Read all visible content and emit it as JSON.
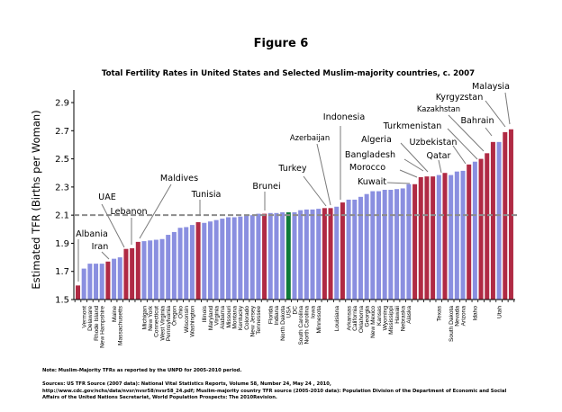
{
  "figure_label": "Figure 6",
  "notes": {
    "note": "Note: Muslim-Majority  TFRs as reported by the UNPD for 2005-2010 period.",
    "sources_1": "Sources: US TFR Source (2007 data): National Vital Statistics Reports, Volume 58, Number 24, May 24 , 2010,",
    "sources_2": "http://www.cdc.gov/nchs/data/nvsr/nvsr58/nvsr58_24.pdf; Muslim-majority country TFR source (2005-2010 data): Population Division of the Department of Economic and Social",
    "sources_3": "Affairs of the United Nations Secretariat, World Population Prospects: The 2010Revision."
  },
  "chart_data": {
    "type": "bar",
    "title": "Total Fertility Rates in United States and Selected Muslim-majority countries, c. 2007",
    "xlabel": "",
    "ylabel": "Estimated TFR (Births per Woman)",
    "ylim": [
      1.5,
      3.0
    ],
    "yticks": [
      "1.5",
      "1.7",
      "1.9",
      "2.1",
      "2.3",
      "2.5",
      "2.7",
      "2.9"
    ],
    "reference_line": 2.1,
    "grid": false,
    "legend": "none",
    "colors": {
      "state": "#8a8fe0",
      "country": "#b02a44",
      "usa": "#0f7a3a",
      "reference_line": "#8c8c8c"
    },
    "bars": [
      {
        "name": "Albania",
        "value": 1.6,
        "group": "country"
      },
      {
        "name": "Vermont",
        "value": 1.72,
        "group": "state"
      },
      {
        "name": "Delaware",
        "value": 1.755,
        "group": "state"
      },
      {
        "name": "Rhode Island",
        "value": 1.755,
        "group": "state"
      },
      {
        "name": "New Hampshire",
        "value": 1.755,
        "group": "state"
      },
      {
        "name": "Iran",
        "value": 1.77,
        "group": "country"
      },
      {
        "name": "Maine",
        "value": 1.79,
        "group": "state"
      },
      {
        "name": "Massachusetts",
        "value": 1.8,
        "group": "state"
      },
      {
        "name": "UAE",
        "value": 1.86,
        "group": "country"
      },
      {
        "name": "Lebanon",
        "value": 1.865,
        "group": "country"
      },
      {
        "name": "Maldives",
        "value": 1.91,
        "group": "country"
      },
      {
        "name": "Michigan",
        "value": 1.915,
        "group": "state"
      },
      {
        "name": "New York",
        "value": 1.92,
        "group": "state"
      },
      {
        "name": "Connecticut",
        "value": 1.925,
        "group": "state"
      },
      {
        "name": "West Virginia",
        "value": 1.93,
        "group": "state"
      },
      {
        "name": "Pennsylvania",
        "value": 1.96,
        "group": "state"
      },
      {
        "name": "Oregon",
        "value": 1.98,
        "group": "state"
      },
      {
        "name": "Ohio",
        "value": 2.01,
        "group": "state"
      },
      {
        "name": "Wisconsin",
        "value": 2.015,
        "group": "state"
      },
      {
        "name": "Washington",
        "value": 2.03,
        "group": "state"
      },
      {
        "name": "Tunisia",
        "value": 2.05,
        "group": "country"
      },
      {
        "name": "Illinois",
        "value": 2.045,
        "group": "state"
      },
      {
        "name": "Maryland",
        "value": 2.055,
        "group": "state"
      },
      {
        "name": "Virginia",
        "value": 2.065,
        "group": "state"
      },
      {
        "name": "Alabama",
        "value": 2.075,
        "group": "state"
      },
      {
        "name": "Missouri",
        "value": 2.085,
        "group": "state"
      },
      {
        "name": "Montana",
        "value": 2.085,
        "group": "state"
      },
      {
        "name": "Kentucky",
        "value": 2.09,
        "group": "state"
      },
      {
        "name": "Colorado",
        "value": 2.095,
        "group": "state"
      },
      {
        "name": "New Jersey",
        "value": 2.1,
        "group": "state"
      },
      {
        "name": "Tennessee",
        "value": 2.11,
        "group": "state"
      },
      {
        "name": "Brunei",
        "value": 2.11,
        "group": "country"
      },
      {
        "name": "Florida",
        "value": 2.115,
        "group": "state"
      },
      {
        "name": "Indiana",
        "value": 2.115,
        "group": "state"
      },
      {
        "name": "North Dakota",
        "value": 2.12,
        "group": "state"
      },
      {
        "name": "USA",
        "value": 2.12,
        "group": "usa"
      },
      {
        "name": "DC",
        "value": 2.12,
        "group": "state"
      },
      {
        "name": "South Carolina",
        "value": 2.135,
        "group": "state"
      },
      {
        "name": "North Carolina",
        "value": 2.14,
        "group": "state"
      },
      {
        "name": "Iowa",
        "value": 2.14,
        "group": "state"
      },
      {
        "name": "Minnesota",
        "value": 2.145,
        "group": "state"
      },
      {
        "name": "Turkey",
        "value": 2.15,
        "group": "country"
      },
      {
        "name": "Azerbaijan",
        "value": 2.15,
        "group": "country"
      },
      {
        "name": "Louisiana",
        "value": 2.16,
        "group": "state"
      },
      {
        "name": "Indonesia",
        "value": 2.19,
        "group": "country"
      },
      {
        "name": "Arkansas",
        "value": 2.21,
        "group": "state"
      },
      {
        "name": "California",
        "value": 2.21,
        "group": "state"
      },
      {
        "name": "Oklahoma",
        "value": 2.23,
        "group": "state"
      },
      {
        "name": "Georgia",
        "value": 2.25,
        "group": "state"
      },
      {
        "name": "New Mexico",
        "value": 2.27,
        "group": "state"
      },
      {
        "name": "Kansas",
        "value": 2.27,
        "group": "state"
      },
      {
        "name": "Wyoming",
        "value": 2.28,
        "group": "state"
      },
      {
        "name": "Mississippi",
        "value": 2.28,
        "group": "state"
      },
      {
        "name": "Hawaii",
        "value": 2.285,
        "group": "state"
      },
      {
        "name": "Nebraska",
        "value": 2.29,
        "group": "state"
      },
      {
        "name": "Alaska",
        "value": 2.32,
        "group": "state"
      },
      {
        "name": "Kuwait",
        "value": 2.32,
        "group": "country"
      },
      {
        "name": "Morocco",
        "value": 2.37,
        "group": "country"
      },
      {
        "name": "Bangladesh",
        "value": 2.375,
        "group": "country"
      },
      {
        "name": "Algeria",
        "value": 2.375,
        "group": "country"
      },
      {
        "name": "Texas",
        "value": 2.385,
        "group": "state"
      },
      {
        "name": "Qatar",
        "value": 2.4,
        "group": "country"
      },
      {
        "name": "South Dakota",
        "value": 2.385,
        "group": "state"
      },
      {
        "name": "Nevada",
        "value": 2.41,
        "group": "state"
      },
      {
        "name": "Arizona",
        "value": 2.415,
        "group": "state"
      },
      {
        "name": "Uzbekistan",
        "value": 2.46,
        "group": "country"
      },
      {
        "name": "Idaho",
        "value": 2.48,
        "group": "state"
      },
      {
        "name": "Turkmenistan",
        "value": 2.5,
        "group": "country"
      },
      {
        "name": "Kazakhstan",
        "value": 2.54,
        "group": "country"
      },
      {
        "name": "Bahrain",
        "value": 2.62,
        "group": "country"
      },
      {
        "name": "Utah",
        "value": 2.62,
        "group": "state"
      },
      {
        "name": "Kyrgyzstan",
        "value": 2.69,
        "group": "country"
      },
      {
        "name": "Malaysia",
        "value": 2.71,
        "group": "country"
      }
    ]
  }
}
